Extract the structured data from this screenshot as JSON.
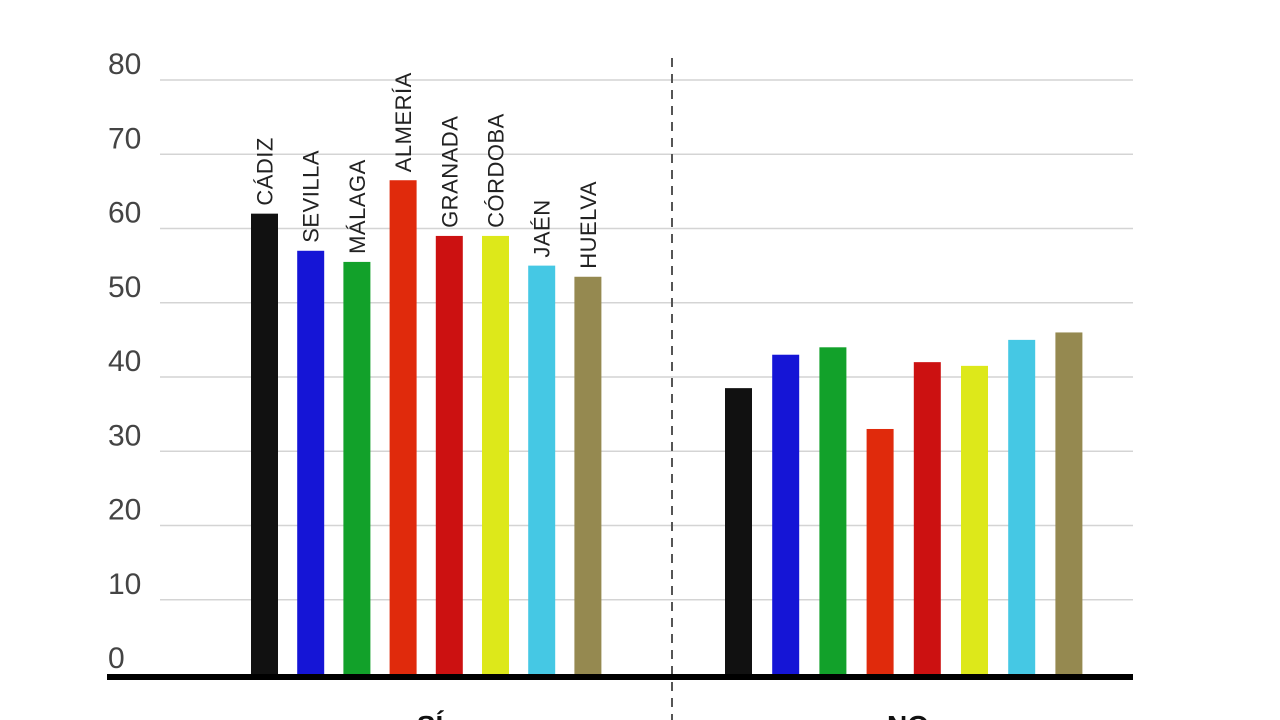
{
  "chart_data": {
    "type": "bar",
    "title": "",
    "xlabel": "",
    "ylabel": "",
    "ylim": [
      0,
      80
    ],
    "yticks": [
      0,
      10,
      20,
      30,
      40,
      50,
      60,
      70,
      80
    ],
    "grid": true,
    "groups": [
      "SÍ",
      "NO"
    ],
    "categories": [
      "CÁDIZ",
      "SEVILLA",
      "MÁLAGA",
      "ALMERÍA",
      "GRANADA",
      "CÓRDOBA",
      "JAÉN",
      "HUELVA"
    ],
    "colors": [
      "#111111",
      "#1515d6",
      "#12a12a",
      "#e02a0c",
      "#cc1111",
      "#dde81a",
      "#45c8e4",
      "#958950"
    ],
    "series": [
      {
        "group": "SÍ",
        "values": [
          62,
          57,
          55.5,
          66.5,
          59,
          59,
          55,
          53.5
        ]
      },
      {
        "group": "NO",
        "values": [
          38.5,
          43,
          44,
          33,
          42,
          41.5,
          45,
          46
        ]
      }
    ]
  }
}
